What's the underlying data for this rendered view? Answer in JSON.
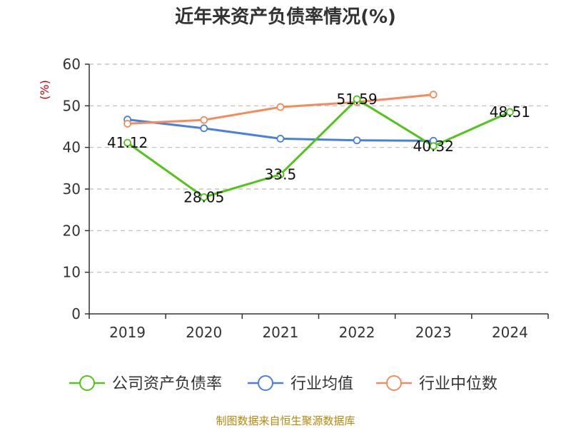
{
  "chart_data": {
    "type": "line",
    "title": "近年来资产负债率情况(%)",
    "unit_label": "(%)",
    "categories": [
      "2019",
      "2020",
      "2021",
      "2022",
      "2023",
      "2024"
    ],
    "ylim": [
      0,
      60
    ],
    "yticks": [
      "0",
      "10",
      "20",
      "30",
      "40",
      "50",
      "60"
    ],
    "grid": true,
    "legend_position": "bottom",
    "series": [
      {
        "name": "公司资产负债率",
        "color": "#52c41a",
        "values": [
          41.12,
          28.05,
          33.5,
          51.59,
          40.32,
          48.51
        ],
        "labels": [
          "41.12",
          "28.05",
          "33.5",
          "51.59",
          "40.32",
          "48.51"
        ]
      },
      {
        "name": "行业均值",
        "color": "#4a7fe0",
        "values": [
          46.7,
          44.6,
          42.1,
          41.7,
          41.6,
          null
        ]
      },
      {
        "name": "行业中位数",
        "color": "#f28c5a",
        "values": [
          45.7,
          46.6,
          49.7,
          50.9,
          52.7,
          null
        ]
      }
    ]
  },
  "footer": {
    "source": "制图数据来自恒生聚源数据库"
  }
}
